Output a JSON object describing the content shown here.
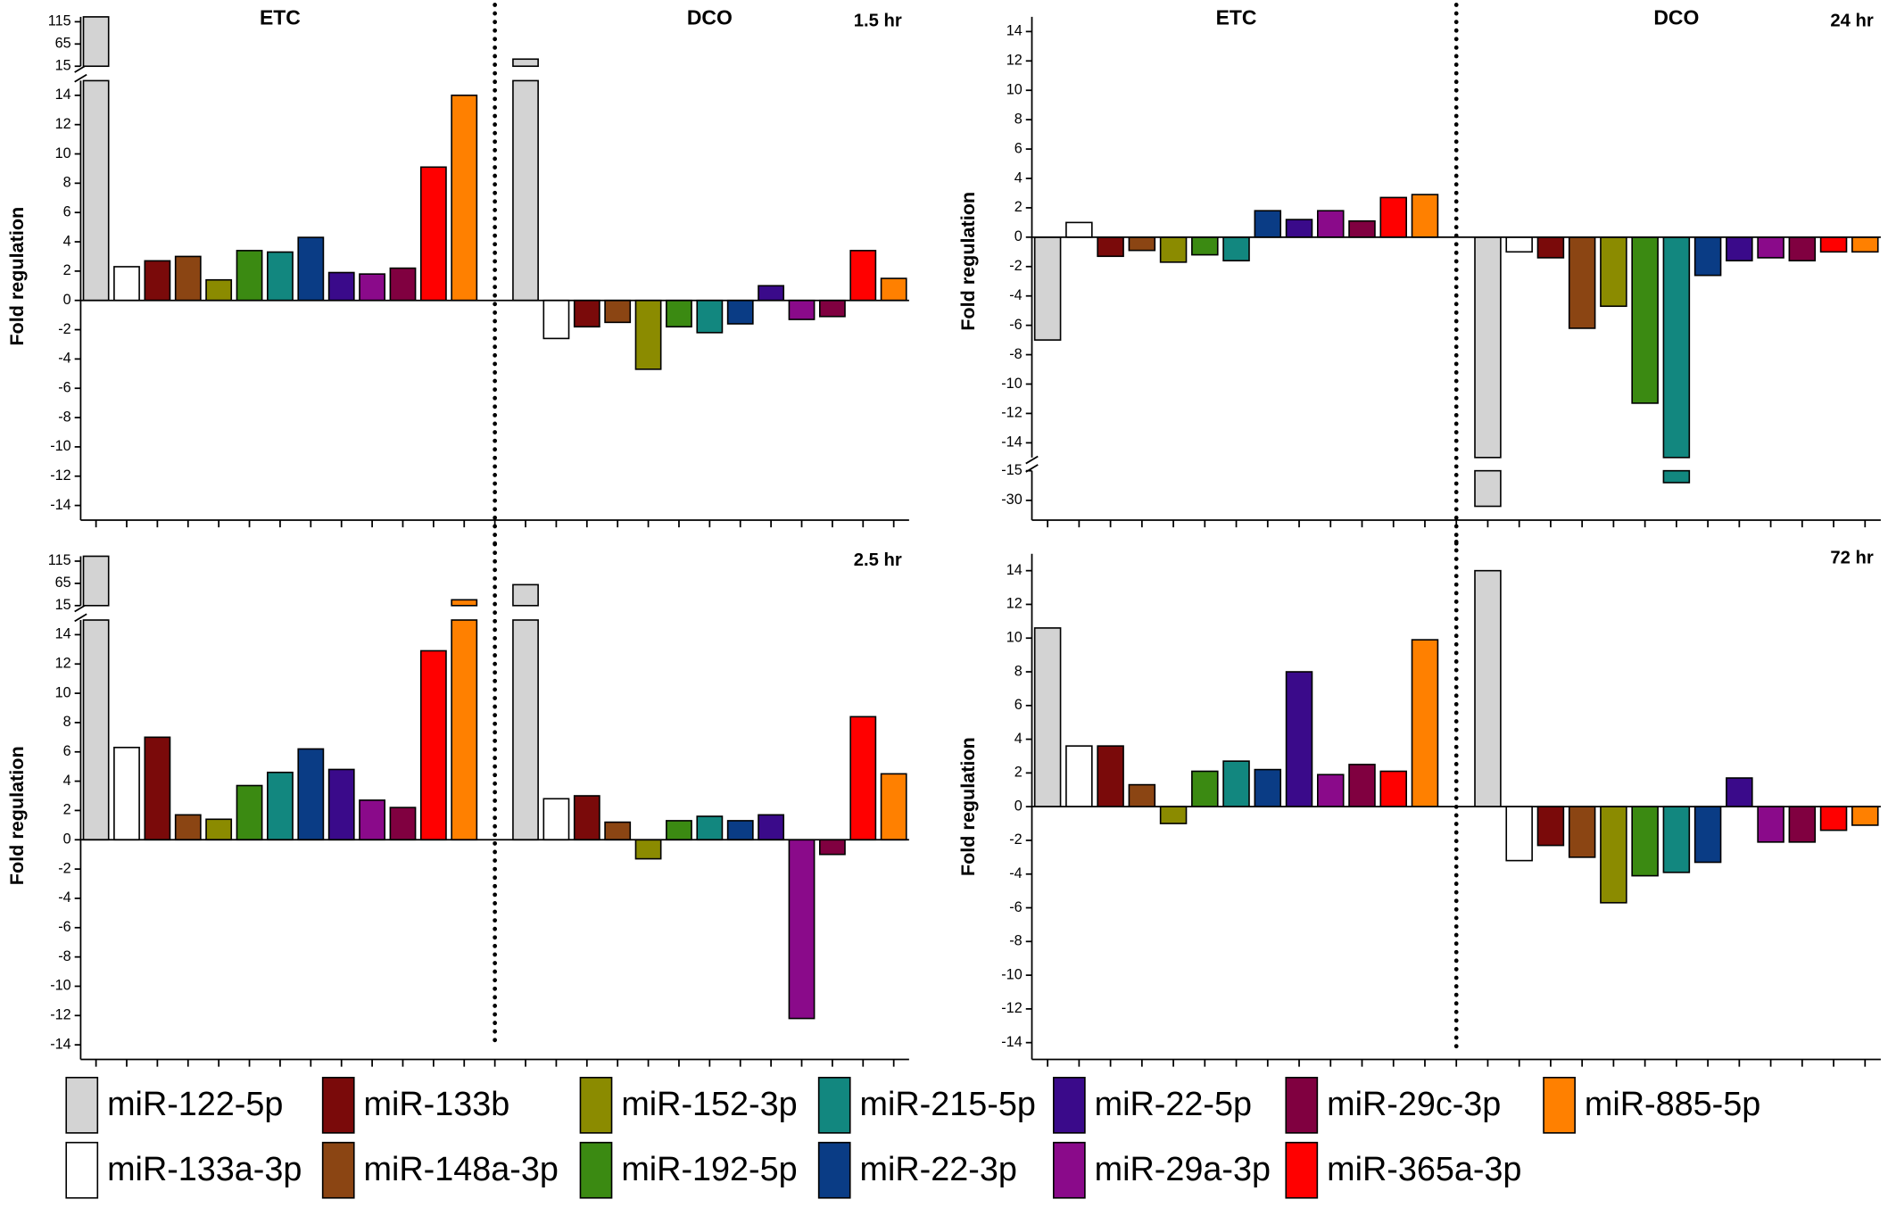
{
  "legend": [
    {
      "name": "miR-122-5p",
      "color": "#d3d3d3"
    },
    {
      "name": "miR-133a-3p",
      "color": "#ffffff"
    },
    {
      "name": "miR-133b",
      "color": "#7a0a0a"
    },
    {
      "name": "miR-148a-3p",
      "color": "#8b4513"
    },
    {
      "name": "miR-152-3p",
      "color": "#8b8b00"
    },
    {
      "name": "miR-192-5p",
      "color": "#3b8a12"
    },
    {
      "name": "miR-215-5p",
      "color": "#12877f"
    },
    {
      "name": "miR-22-3p",
      "color": "#0a3c85"
    },
    {
      "name": "miR-22-5p",
      "color": "#3a0a8a"
    },
    {
      "name": "miR-29a-3p",
      "color": "#8a0a8a"
    },
    {
      "name": "miR-29c-3p",
      "color": "#800040"
    },
    {
      "name": "miR-365a-3p",
      "color": "#ff0000"
    },
    {
      "name": "miR-885-5p",
      "color": "#ff8000"
    }
  ],
  "chart_data": [
    {
      "type": "bar",
      "title": "1.5 hr",
      "ylabel": "Fold regulation",
      "categories": [
        "ETC",
        "DCO"
      ],
      "values": [
        [
          126,
          2.3,
          2.7,
          3.0,
          1.4,
          3.4,
          3.3,
          4.3,
          1.9,
          1.8,
          2.2,
          9.1,
          14
        ],
        [
          31,
          -2.6,
          -1.8,
          -1.5,
          -4.7,
          -1.8,
          -2.2,
          -1.6,
          1.0,
          -1.3,
          -1.1,
          3.4,
          1.5
        ]
      ],
      "ylim": [
        -15,
        15
      ],
      "yticks": [
        14,
        12,
        10,
        8,
        6,
        4,
        2,
        0,
        -2,
        -4,
        -6,
        -8,
        -10,
        -12,
        -14
      ],
      "upper_ylim": [
        15,
        126
      ],
      "upper_yticks": [
        15,
        65,
        115
      ]
    },
    {
      "type": "bar",
      "title": "24 hr",
      "ylabel": "Fold regulation",
      "categories": [
        "ETC",
        "DCO"
      ],
      "values": [
        [
          -7.0,
          1.0,
          -1.3,
          -0.9,
          -1.7,
          -1.2,
          -1.6,
          1.8,
          1.2,
          1.8,
          1.1,
          2.7,
          2.9
        ],
        [
          -33,
          -1.0,
          -1.4,
          -6.2,
          -4.7,
          -11.3,
          -21,
          -2.6,
          -1.6,
          -1.4,
          -1.6,
          -1.0,
          -1.0
        ]
      ],
      "ylim": [
        -15,
        15
      ],
      "yticks": [
        14,
        12,
        10,
        8,
        6,
        4,
        2,
        0,
        -2,
        -4,
        -6,
        -8,
        -10,
        -12,
        -14
      ],
      "lower_ylim": [
        -40,
        -15
      ],
      "lower_yticks": [
        -15,
        -30
      ]
    },
    {
      "type": "bar",
      "title": "2.5 hr",
      "ylabel": "Fold regulation",
      "values": [
        [
          126,
          6.3,
          7.0,
          1.7,
          1.4,
          3.7,
          4.6,
          6.2,
          4.8,
          2.7,
          2.2,
          12.9,
          28
        ],
        [
          62,
          2.8,
          3.0,
          1.2,
          -1.3,
          1.3,
          1.6,
          1.3,
          1.7,
          -12.2,
          -1.0,
          8.4,
          4.5
        ]
      ],
      "ylim": [
        -15,
        15
      ],
      "yticks": [
        14,
        12,
        10,
        8,
        6,
        4,
        2,
        0,
        -2,
        -4,
        -6,
        -8,
        -10,
        -12,
        -14
      ],
      "upper_ylim": [
        15,
        126
      ],
      "upper_yticks": [
        15,
        65,
        115
      ]
    },
    {
      "type": "bar",
      "title": "72 hr",
      "ylabel": "Fold regulation",
      "values": [
        [
          10.6,
          3.6,
          3.6,
          1.3,
          -1.0,
          2.1,
          2.7,
          2.2,
          8.0,
          1.9,
          2.5,
          2.1,
          9.9
        ],
        [
          14.0,
          -3.2,
          -2.3,
          -3.0,
          -5.7,
          -4.1,
          -3.9,
          -3.3,
          1.7,
          -2.1,
          -2.1,
          -1.4,
          -1.1
        ]
      ],
      "ylim": [
        -15,
        15
      ],
      "yticks": [
        14,
        12,
        10,
        8,
        6,
        4,
        2,
        0,
        -2,
        -4,
        -6,
        -8,
        -10,
        -12,
        -14
      ]
    }
  ]
}
